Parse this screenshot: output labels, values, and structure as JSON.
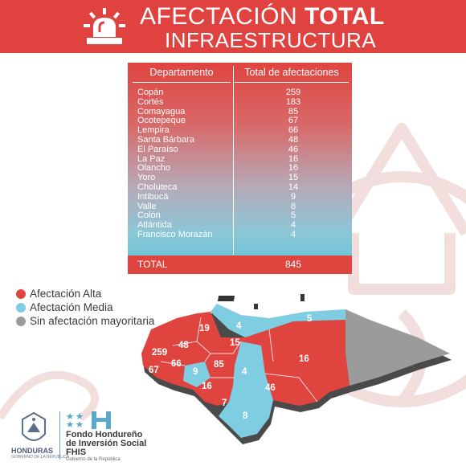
{
  "header": {
    "title_light": "AFECTACIÓN",
    "title_bold": "TOTAL",
    "subtitle": "INFRAESTRUCTURA",
    "icon": "siren-icon"
  },
  "table": {
    "col1": "Departamento",
    "col2": "Total de afectaciones",
    "rows": [
      {
        "name": "Copán",
        "value": "259"
      },
      {
        "name": "Cortés",
        "value": "183"
      },
      {
        "name": "Comayagua",
        "value": "85"
      },
      {
        "name": "Ocotepeque",
        "value": "67"
      },
      {
        "name": "Lempira",
        "value": "66"
      },
      {
        "name": "Santa Bárbara",
        "value": "48"
      },
      {
        "name": "El Paraíso",
        "value": "46"
      },
      {
        "name": "La Paz",
        "value": "16"
      },
      {
        "name": "Olancho",
        "value": "16"
      },
      {
        "name": "Yoro",
        "value": "15"
      },
      {
        "name": "Choluteca",
        "value": "14"
      },
      {
        "name": "Intibucá",
        "value": "9"
      },
      {
        "name": "Valle",
        "value": "8"
      },
      {
        "name": "Colón",
        "value": "5"
      },
      {
        "name": "Atlántida",
        "value": "4"
      },
      {
        "name": "Francisco Morazán",
        "value": "4"
      }
    ],
    "total_label": "TOTAL",
    "total_value": "845"
  },
  "legend": [
    {
      "label": "Afectación Alta",
      "color": "#e0443f"
    },
    {
      "label": "Afectación Media",
      "color": "#7fcde0"
    },
    {
      "label": "Sin afectación mayoritaria",
      "color": "#9b9b9b"
    }
  ],
  "map_labels": [
    "19",
    "4",
    "5",
    "15",
    "48",
    "259",
    "66",
    "9",
    "85",
    "16",
    "67",
    "16",
    "4",
    "46",
    "7",
    "8"
  ],
  "colors": {
    "red": "#e0443f",
    "blue": "#7fcde0",
    "grey": "#9b9b9b"
  },
  "footer": {
    "country": "HONDURAS",
    "gov_line": "GOBIERNO DE LA REPÚBLICA",
    "org_line1": "Fondo Hondureño",
    "org_line2": "de Inversión Social",
    "org_acronym": "FHIS",
    "org_sub": "Gobierno de la República"
  }
}
